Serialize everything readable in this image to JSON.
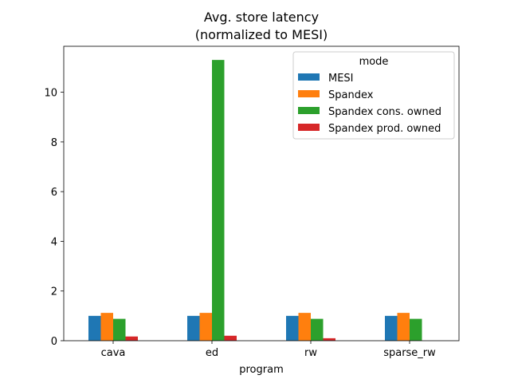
{
  "chart_data": {
    "type": "bar",
    "title_line1": "Avg. store latency",
    "title_line2": "(normalized to MESI)",
    "xlabel": "program",
    "ylabel": "",
    "categories": [
      "cava",
      "ed",
      "rw",
      "sparse_rw"
    ],
    "ylim": [
      0,
      11.85
    ],
    "yticks": [
      0,
      2,
      4,
      6,
      8,
      10
    ],
    "legend_title": "mode",
    "legend_position": "top-right",
    "grid": false,
    "series": [
      {
        "name": "MESI",
        "color": "#1f77b4",
        "values": [
          1.0,
          1.0,
          1.0,
          1.0
        ]
      },
      {
        "name": "Spandex",
        "color": "#ff7f0e",
        "values": [
          1.12,
          1.12,
          1.12,
          1.12
        ]
      },
      {
        "name": "Spandex cons. owned",
        "color": "#2ca02c",
        "values": [
          0.88,
          11.3,
          0.88,
          0.88
        ]
      },
      {
        "name": "Spandex prod. owned",
        "color": "#d62728",
        "values": [
          0.17,
          0.2,
          0.1,
          0.0
        ]
      }
    ]
  }
}
